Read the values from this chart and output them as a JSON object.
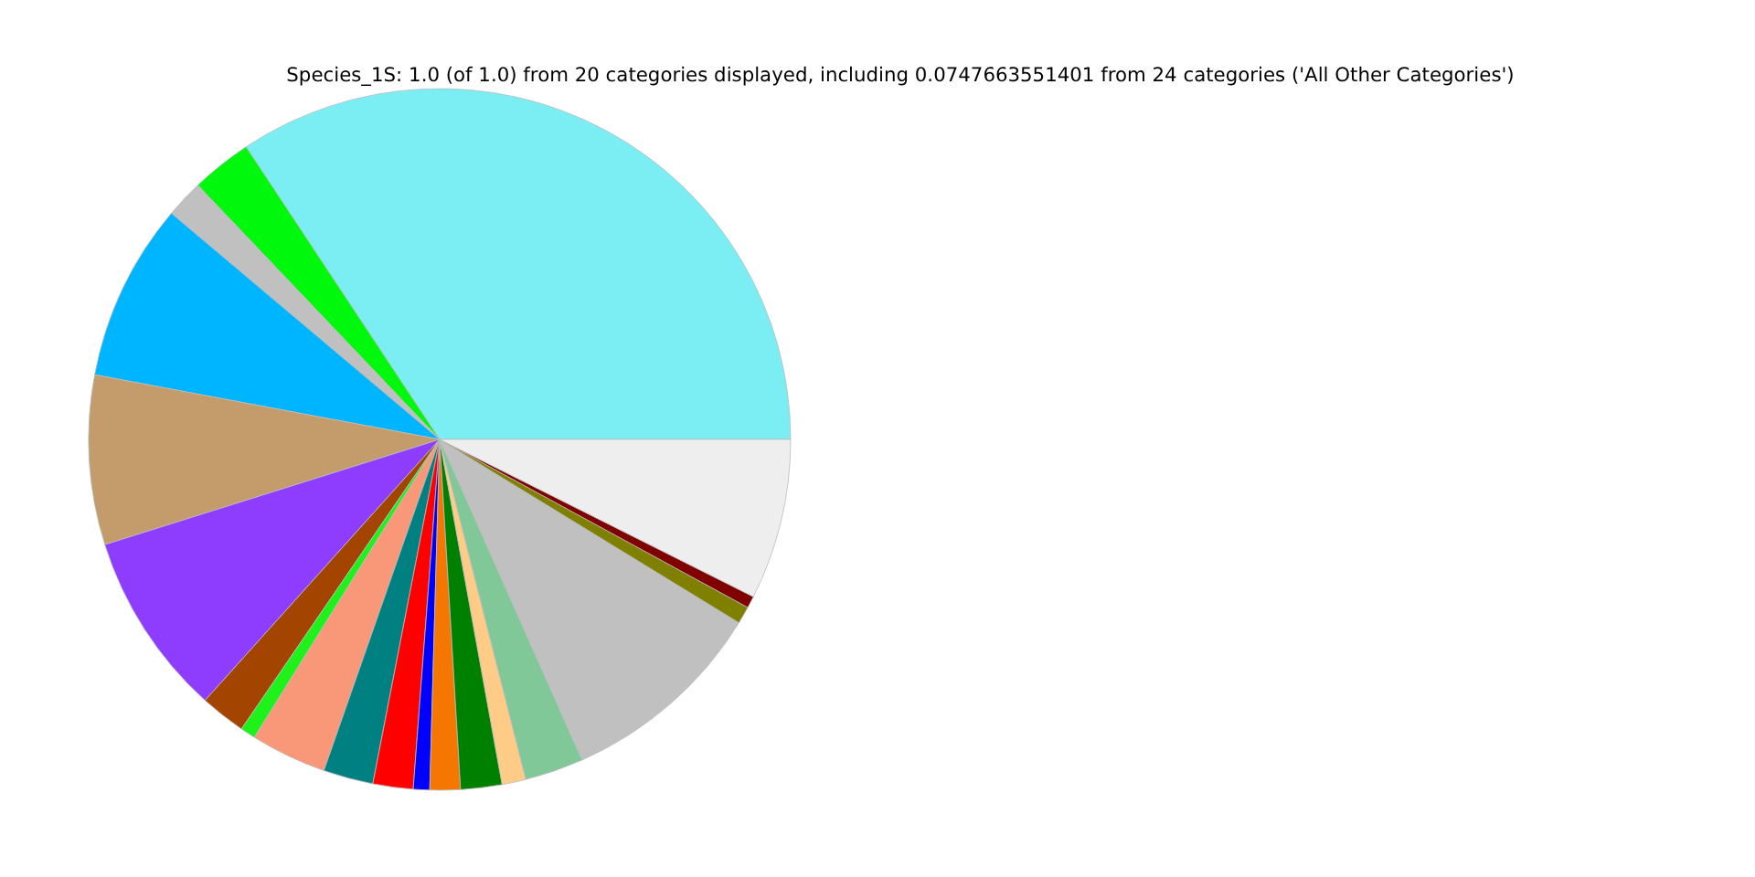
{
  "chart_data": {
    "type": "pie",
    "title": "Species_1S: 1.0 (of 1.0) from 20 categories displayed, including 0.0747663551401 from 24 categories ('All Other Categories')",
    "categories": [
      null,
      null,
      null,
      null,
      null,
      null,
      null,
      null,
      null,
      null,
      null,
      null,
      null,
      null,
      null,
      null,
      null,
      null,
      null,
      null
    ],
    "values": [
      34.3,
      2.8,
      1.75,
      8.2,
      7.8,
      8.5,
      2.1,
      0.7,
      3.5,
      2.3,
      1.85,
      0.75,
      1.4,
      1.9,
      1.1,
      2.7,
      9.6,
      0.8,
      0.55,
      7.4
    ],
    "colors": [
      "#7beef4",
      "#00f80c",
      "#c0c0c0",
      "#00b5ff",
      "#c49c6b",
      "#8e3dff",
      "#a34400",
      "#1ef21a",
      "#f89878",
      "#008080",
      "#ff0000",
      "#0000ff",
      "#f57600",
      "#008000",
      "#ffcc88",
      "#80c898",
      "#c0c0c0",
      "#808000",
      "#800000",
      "#eeeeee"
    ]
  }
}
